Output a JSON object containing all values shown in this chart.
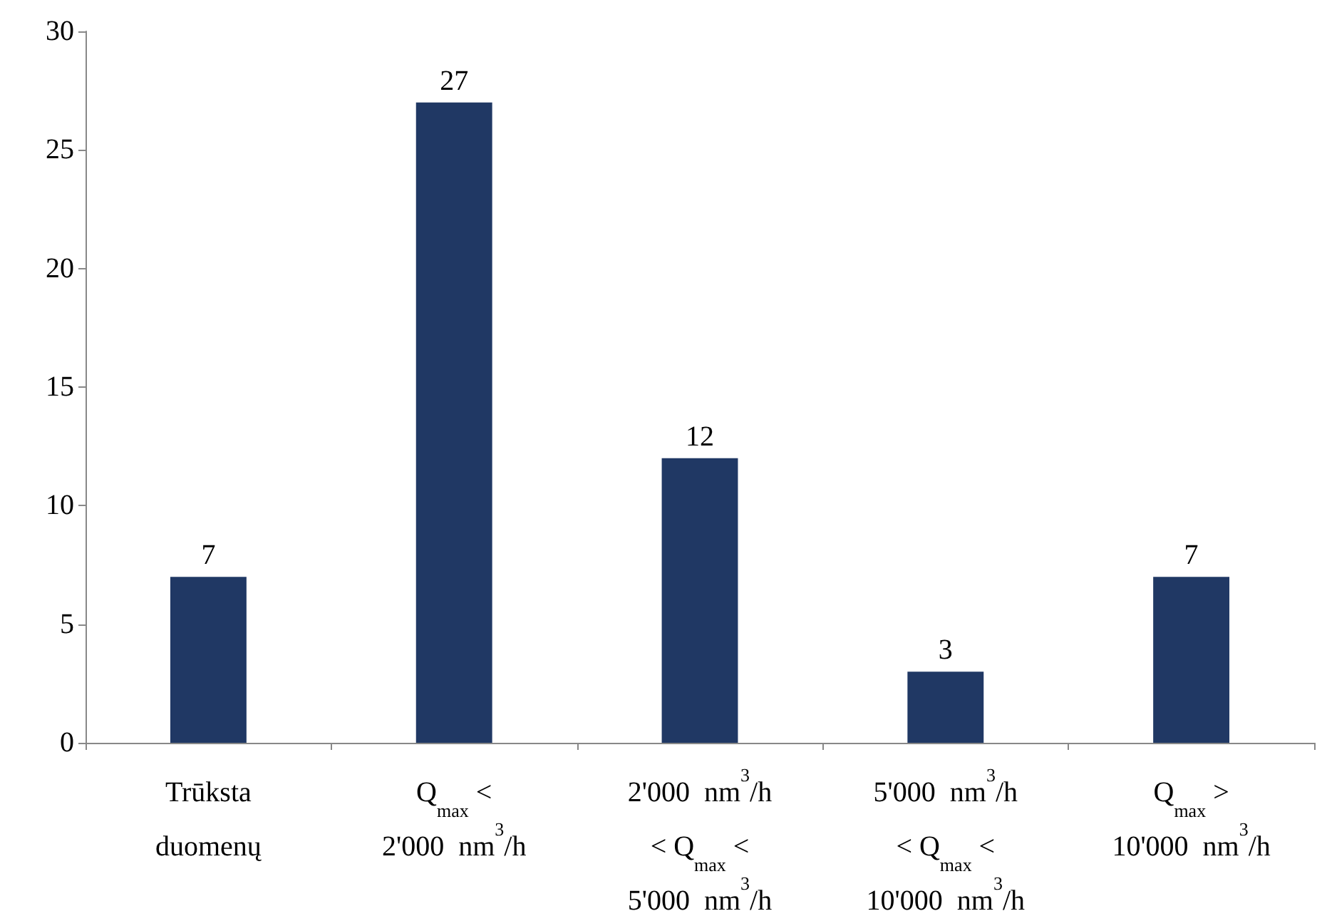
{
  "chart_data": {
    "type": "bar",
    "categories": [
      "Trūksta\nduomenų",
      "Q$_{max}$ <\n2'000  nm$^{3}$/h",
      "2'000  nm$^{3}$/h\n< Q$_{max}$ <\n5'000  nm$^{3}$/h",
      "5'000  nm$^{3}$/h\n< Q$_{max}$ <\n10'000  nm$^{3}$/h",
      "Q$_{max}$ >\n10'000  nm$^{3}$/h"
    ],
    "values": [
      7,
      27,
      12,
      3,
      7
    ],
    "color": "#203864",
    "ylim": [
      0,
      30
    ],
    "yticks": [
      0,
      5,
      10,
      15,
      20,
      25,
      30
    ],
    "data_labels": true
  }
}
